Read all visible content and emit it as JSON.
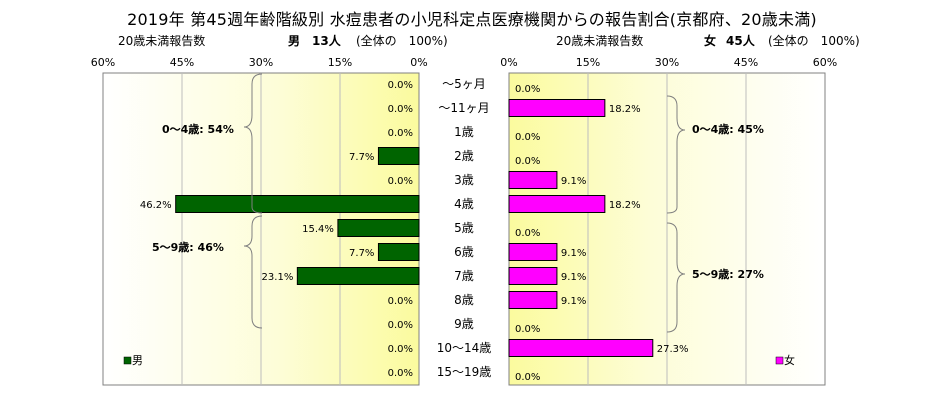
{
  "title": "2019年 第45週年齢階級別 水痘患者の小児科定点医療機関からの報告割合(京都府、20歳未満)",
  "left_panel": {
    "subtitle_left": "20歳未満報告数",
    "subtitle_sex": "男",
    "subtitle_count": "13人",
    "subtitle_share": "(全体の　100%)"
  },
  "right_panel": {
    "subtitle_left": "20歳未満報告数",
    "subtitle_sex": "女",
    "subtitle_count": "45人",
    "subtitle_share": "(全体の　100%)"
  },
  "chart_data": [
    {
      "type": "bar",
      "orientation": "horizontal",
      "direction": "right-to-left",
      "series": [
        {
          "name": "男",
          "color": "#006400",
          "values": [
            0.0,
            0.0,
            0.0,
            7.7,
            0.0,
            46.2,
            15.4,
            7.7,
            23.1,
            0.0,
            0.0,
            0.0,
            0.0
          ]
        }
      ],
      "data_labels": [
        "0.0%",
        "0.0%",
        "0.0%",
        "7.7%",
        "0.0%",
        "46.2%",
        "15.4%",
        "7.7%",
        "23.1%",
        "0.0%",
        "0.0%",
        "0.0%",
        "0.0%"
      ],
      "xlim": [
        0,
        60
      ],
      "xticks": [
        "60%",
        "45%",
        "30%",
        "15%",
        "0%"
      ],
      "legend": {
        "label": "男",
        "position": "bottom-left"
      },
      "annotations": [
        "0～4歳: 54%",
        "5～9歳: 46%"
      ],
      "grid": true,
      "background": "yellow-gradient"
    },
    {
      "type": "bar",
      "orientation": "horizontal",
      "direction": "left-to-right",
      "series": [
        {
          "name": "女",
          "color": "#ff00ff",
          "values": [
            0.0,
            18.2,
            0.0,
            0.0,
            9.1,
            18.2,
            0.0,
            9.1,
            9.1,
            9.1,
            0.0,
            27.3,
            0.0
          ]
        }
      ],
      "data_labels": [
        "0.0%",
        "18.2%",
        "0.0%",
        "0.0%",
        "9.1%",
        "18.2%",
        "0.0%",
        "9.1%",
        "9.1%",
        "9.1%",
        "0.0%",
        "27.3%",
        "0.0%"
      ],
      "xlim": [
        0,
        60
      ],
      "xticks": [
        "0%",
        "15%",
        "30%",
        "45%",
        "60%"
      ],
      "legend": {
        "label": "女",
        "position": "bottom-right"
      },
      "annotations": [
        "0～4歳: 45%",
        "5～9歳: 27%"
      ],
      "grid": true,
      "background": "yellow-gradient"
    }
  ],
  "categories": [
    "～5ヶ月",
    "～11ヶ月",
    "1歳",
    "2歳",
    "3歳",
    "4歳",
    "5歳",
    "6歳",
    "7歳",
    "8歳",
    "9歳",
    "10～14歳",
    "15～19歳"
  ],
  "colors": {
    "male": "#006400",
    "female": "#ff00ff"
  }
}
